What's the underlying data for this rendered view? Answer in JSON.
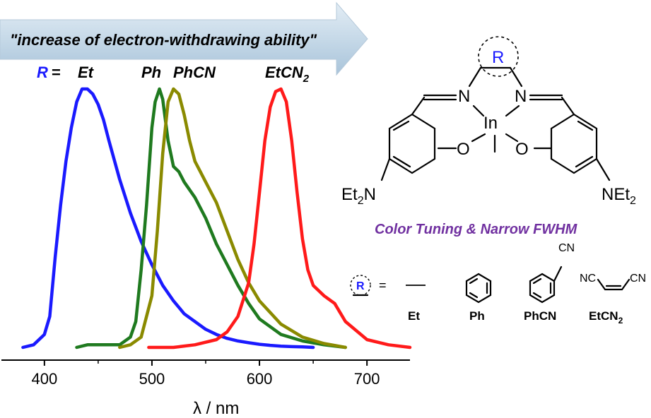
{
  "banner": {
    "text": "\"increase of electron-withdrawing ability\""
  },
  "r_prefix": {
    "letter": "R",
    "equals": "="
  },
  "series_labels": [
    {
      "main": "Et",
      "sub": ""
    },
    {
      "main": "Ph",
      "sub": ""
    },
    {
      "main": "PhCN",
      "sub": ""
    },
    {
      "main": "EtCN",
      "sub": "2"
    }
  ],
  "structure": {
    "R": "R",
    "N_left": "N",
    "N_right": "N",
    "metal": "In",
    "O_left": "O",
    "O_right": "O",
    "NEt2_left": {
      "a": "Et",
      "b": "2",
      "c": "N"
    },
    "NEt2_right": {
      "a": "NEt",
      "b": "2"
    }
  },
  "tagline": "Color Tuning & Narrow FWHM",
  "legend": {
    "R": "R",
    "equals": "=",
    "CN_top": "CN",
    "CN_left": "NC",
    "CN_right": "CN",
    "names": [
      "Et",
      "Ph",
      "PhCN",
      "EtCN"
    ],
    "name_sub": "2"
  },
  "colors": {
    "Et": "#1a1aff",
    "Ph": "#1f7a1f",
    "PhCN": "#8a8a00",
    "EtCN2": "#ff1a1a",
    "banner": "#c9dbe9",
    "tagline": "#7030a0"
  },
  "chart_data": {
    "type": "line",
    "xlabel": "λ / nm",
    "ylabel": "",
    "xlim": [
      360,
      740
    ],
    "ylim": [
      0,
      1
    ],
    "xticks": [
      400,
      500,
      600,
      700
    ],
    "grid": false,
    "series": [
      {
        "name": "Et",
        "color": "#1a1aff",
        "x": [
          380,
          390,
          400,
          405,
          410,
          415,
          420,
          425,
          430,
          435,
          440,
          445,
          450,
          455,
          460,
          470,
          480,
          490,
          500,
          510,
          520,
          530,
          540,
          550,
          560,
          570,
          580,
          590,
          600,
          610,
          620,
          630,
          640,
          650
        ],
        "y": [
          0.0,
          0.01,
          0.05,
          0.12,
          0.35,
          0.55,
          0.72,
          0.85,
          0.95,
          1.0,
          1.0,
          0.98,
          0.94,
          0.88,
          0.8,
          0.65,
          0.52,
          0.41,
          0.32,
          0.24,
          0.18,
          0.13,
          0.1,
          0.07,
          0.05,
          0.035,
          0.025,
          0.018,
          0.012,
          0.008,
          0.005,
          0.003,
          0.002,
          0.0
        ]
      },
      {
        "name": "Ph",
        "color": "#1f7a1f",
        "x": [
          430,
          440,
          470,
          480,
          485,
          490,
          495,
          500,
          503,
          507,
          510,
          515,
          520,
          525,
          530,
          540,
          550,
          560,
          570,
          580,
          590,
          600,
          620,
          640,
          660,
          680
        ],
        "y": [
          0.0,
          0.01,
          0.01,
          0.04,
          0.1,
          0.3,
          0.55,
          0.85,
          0.95,
          1.0,
          0.96,
          0.8,
          0.7,
          0.68,
          0.64,
          0.58,
          0.5,
          0.4,
          0.32,
          0.24,
          0.17,
          0.11,
          0.05,
          0.025,
          0.01,
          0.0
        ]
      },
      {
        "name": "PhCN",
        "color": "#8a8a00",
        "x": [
          470,
          480,
          490,
          500,
          505,
          510,
          515,
          520,
          525,
          530,
          535,
          540,
          545,
          550,
          560,
          570,
          580,
          590,
          600,
          620,
          640,
          660,
          680
        ],
        "y": [
          0.0,
          0.01,
          0.04,
          0.2,
          0.45,
          0.75,
          0.95,
          1.0,
          0.98,
          0.9,
          0.8,
          0.72,
          0.68,
          0.64,
          0.56,
          0.45,
          0.34,
          0.25,
          0.18,
          0.09,
          0.04,
          0.015,
          0.0
        ]
      },
      {
        "name": "EtCN2",
        "color": "#ff1a1a",
        "x": [
          497,
          520,
          540,
          560,
          570,
          580,
          590,
          595,
          600,
          605,
          610,
          615,
          620,
          625,
          630,
          635,
          640,
          645,
          650,
          660,
          670,
          680,
          700,
          720,
          740
        ],
        "y": [
          0.0,
          0.0,
          0.01,
          0.03,
          0.06,
          0.12,
          0.25,
          0.4,
          0.6,
          0.8,
          0.93,
          0.99,
          1.0,
          0.95,
          0.8,
          0.6,
          0.42,
          0.3,
          0.24,
          0.2,
          0.17,
          0.1,
          0.03,
          0.01,
          0.0
        ]
      }
    ]
  }
}
